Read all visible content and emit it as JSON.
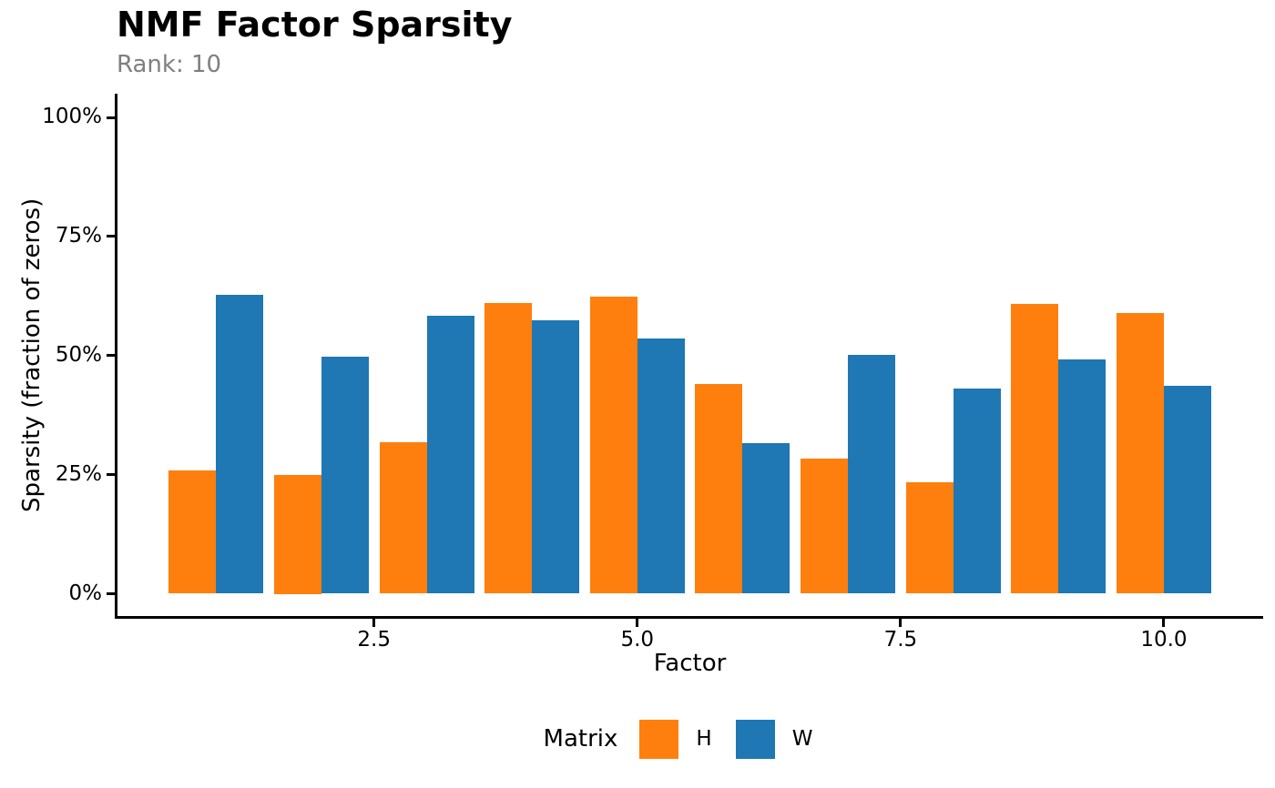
{
  "header": {
    "title": "NMF Factor Sparsity",
    "subtitle": "Rank: 10",
    "subtitle_color": "#7F7F7F"
  },
  "chart_data": {
    "type": "bar",
    "title": "NMF Factor Sparsity",
    "subtitle": "Rank: 10",
    "xlabel": "Factor",
    "ylabel": "Sparsity (fraction of zeros)",
    "categories": [
      1,
      2,
      3,
      4,
      5,
      6,
      7,
      8,
      9,
      10
    ],
    "series": [
      {
        "name": "H",
        "color": "#FF7F0E",
        "values": [
          0.258,
          0.25,
          0.318,
          0.61,
          0.624,
          0.44,
          0.283,
          0.234,
          0.608,
          0.589
        ]
      },
      {
        "name": "W",
        "color": "#1F77B4",
        "values": [
          0.628,
          0.498,
          0.584,
          0.574,
          0.535,
          0.316,
          0.501,
          0.43,
          0.492,
          0.436
        ]
      }
    ],
    "ylim": [
      0,
      1
    ],
    "y_ticks": [
      {
        "value": 0.0,
        "label": "0%"
      },
      {
        "value": 0.25,
        "label": "25%"
      },
      {
        "value": 0.5,
        "label": "50%"
      },
      {
        "value": 0.75,
        "label": "75%"
      },
      {
        "value": 1.0,
        "label": "100%"
      }
    ],
    "x_ticks": [
      {
        "value": 2.5,
        "label": "2.5"
      },
      {
        "value": 5.0,
        "label": "5.0"
      },
      {
        "value": 7.5,
        "label": "7.5"
      },
      {
        "value": 10.0,
        "label": "10.0"
      }
    ],
    "legend_title": "Matrix",
    "legend_position": "bottom",
    "grid": false,
    "axis_color": "#000000"
  }
}
